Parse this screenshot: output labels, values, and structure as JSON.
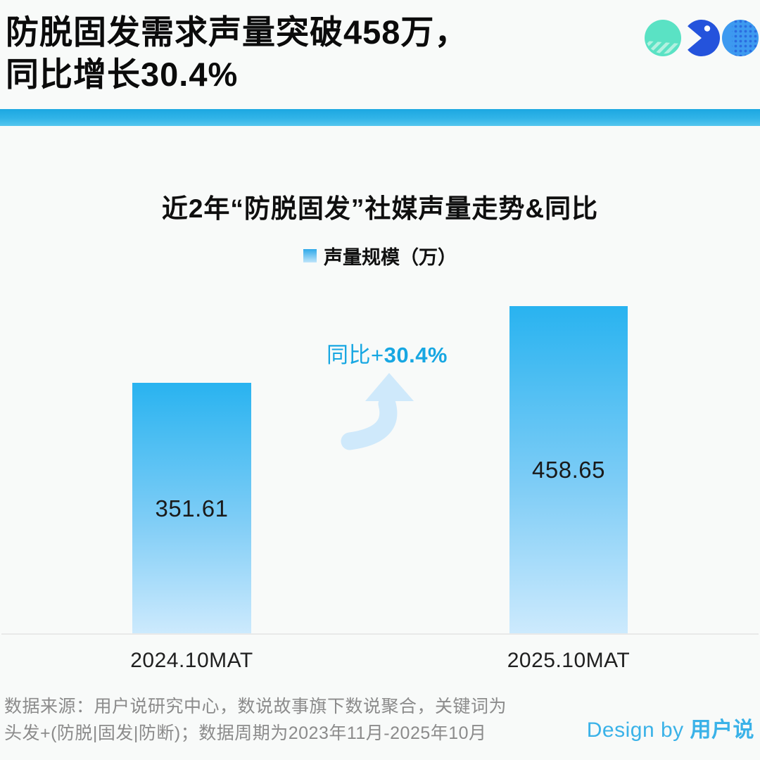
{
  "header": {
    "title_line1": "防脱固发需求声量突破458万，",
    "title_line2": "同比增长30.4%"
  },
  "logo": {
    "icons": [
      "mint-striped-circle",
      "blue-pacman",
      "blue-dotted-circle"
    ]
  },
  "chart_data": {
    "type": "bar",
    "title": "近2年“防脱固发”社媒声量走势&同比",
    "legend": [
      "声量规模（万）"
    ],
    "categories": [
      "2024.10MAT",
      "2025.10MAT"
    ],
    "values": [
      351.61,
      458.65
    ],
    "annotation_prefix": "同比+",
    "annotation_value": "30.4%",
    "ylim": [
      0,
      500
    ],
    "grid": false,
    "legend_position": "top-center",
    "bar_color_top": "#29b3f0",
    "bar_color_bottom": "#cdeafd"
  },
  "footer": {
    "source_line1": "数据来源：用户说研究中心，数说故事旗下数说聚合，关键词为",
    "source_line2": "头发+(防脱|固发|防断)；数据周期为2023年11月-2025年10月",
    "credit_prefix": "Design by ",
    "credit_brand": "用户说"
  },
  "colors": {
    "accent_divider": "#2aafe5",
    "annotation_text": "#17a7e2",
    "credit_text": "#3ab2e8",
    "footer_text": "#8b8b8b",
    "logo_mint": "#5ae2c4",
    "logo_royal_blue": "#2453dc",
    "logo_azure": "#3d9af0"
  }
}
